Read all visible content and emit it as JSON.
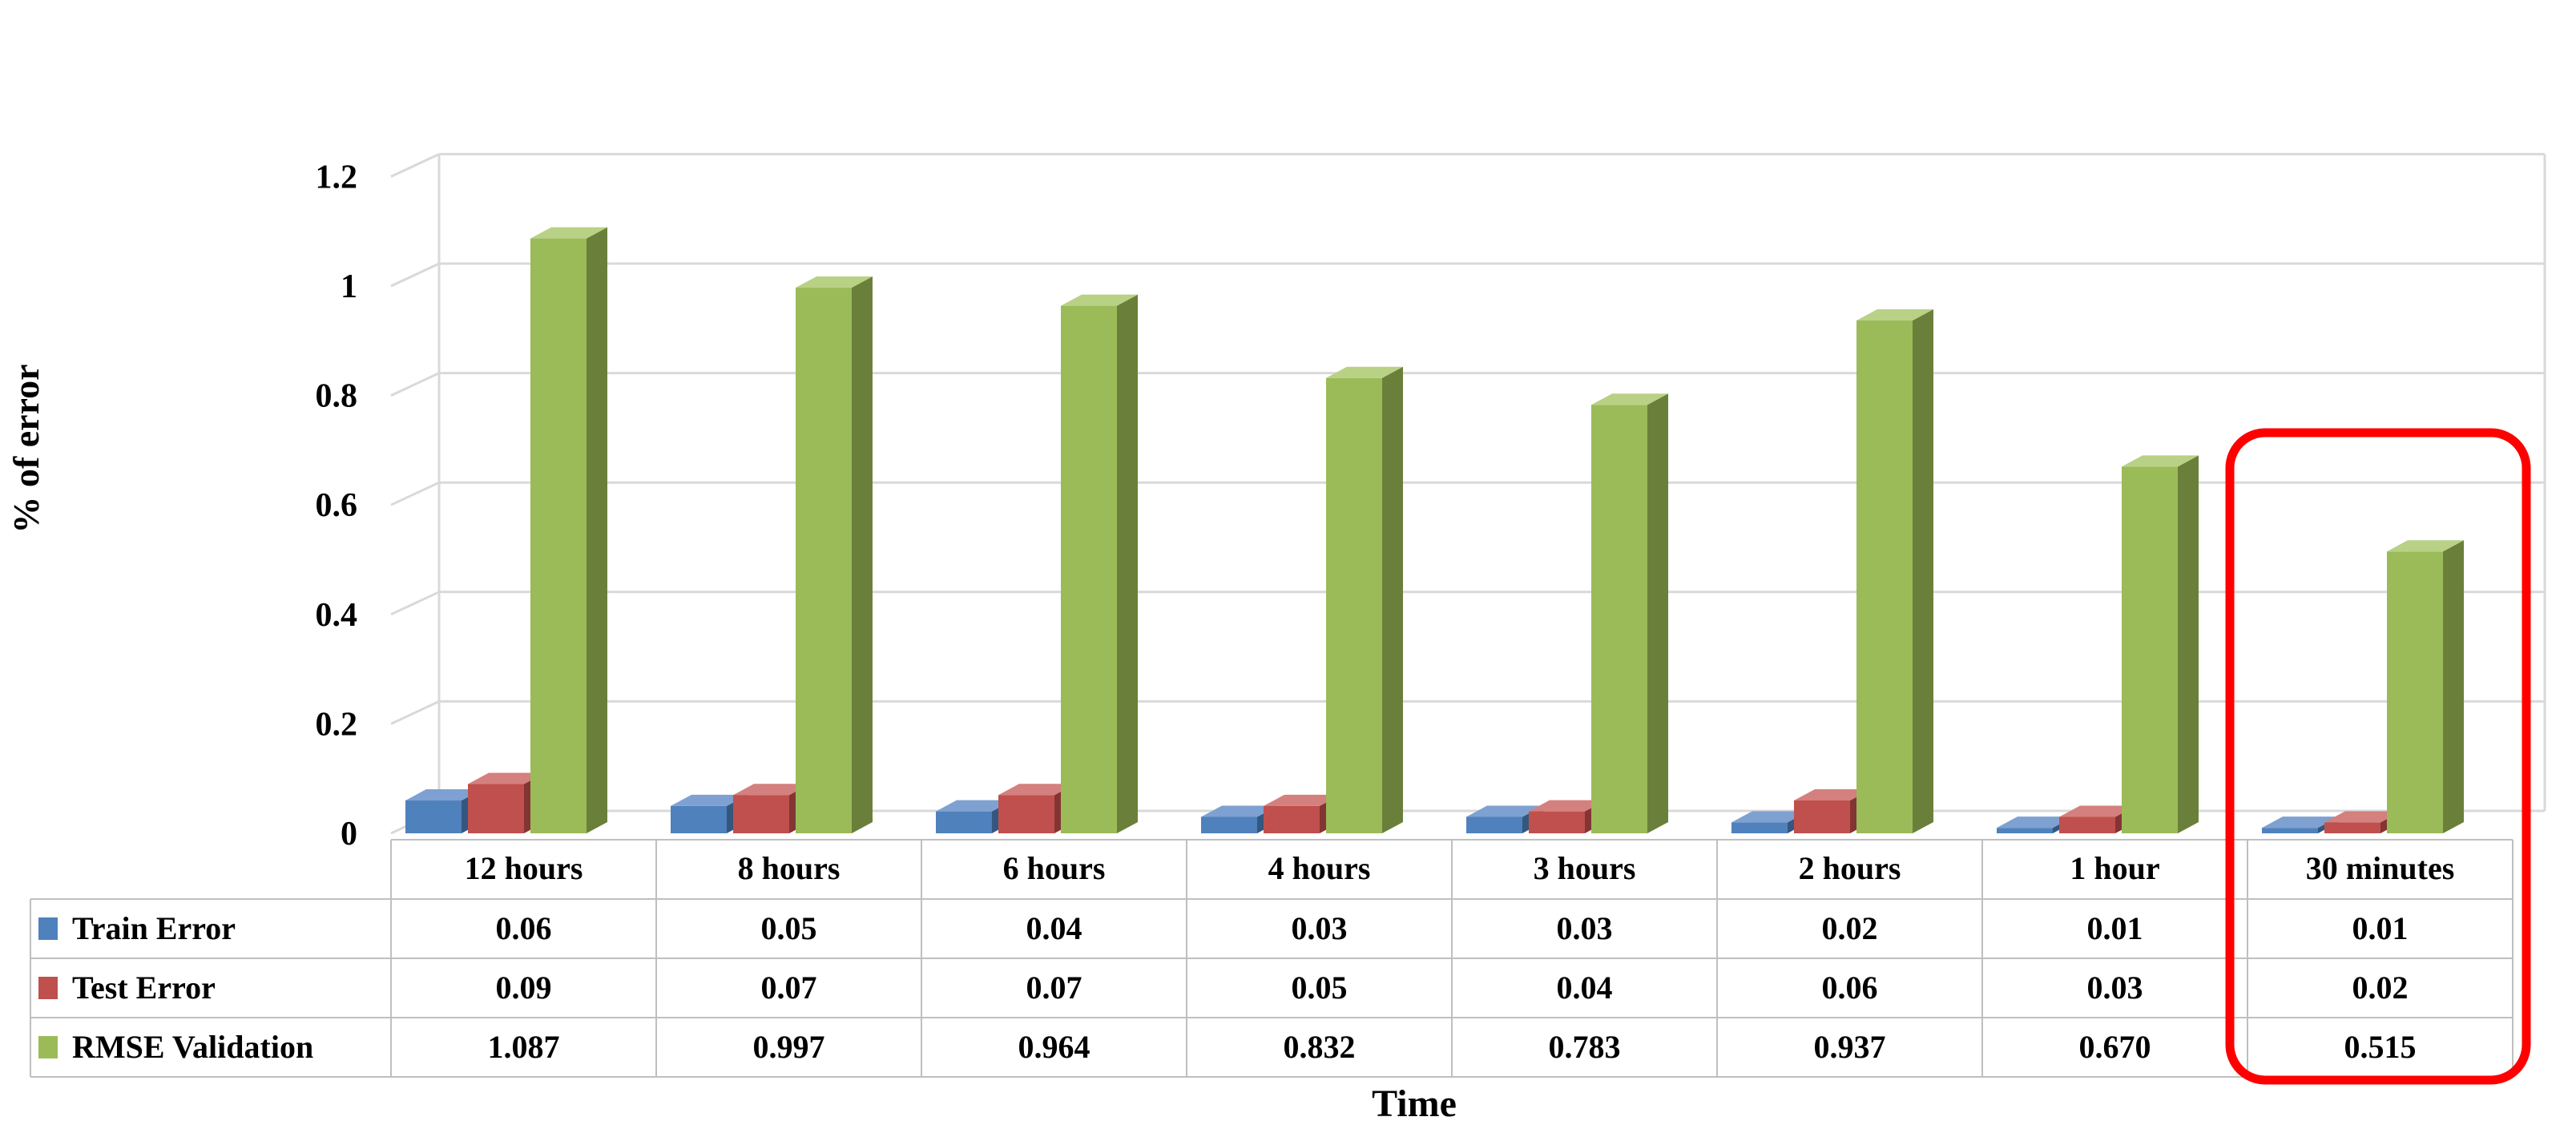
{
  "chart_data": {
    "type": "bar",
    "categories": [
      "12 hours",
      "8 hours",
      "6 hours",
      "4 hours",
      "3 hours",
      "2 hours",
      "1 hour",
      "30 minutes"
    ],
    "series": [
      {
        "name": "Train Error",
        "values": [
          0.06,
          0.05,
          0.04,
          0.03,
          0.03,
          0.02,
          0.01,
          0.01
        ],
        "labels": [
          "0.06",
          "0.05",
          "0.04",
          "0.03",
          "0.03",
          "0.02",
          "0.01",
          "0.01"
        ],
        "color": "#4F81BD",
        "side_color": "#34577F",
        "top_color": "#7EA1D1"
      },
      {
        "name": "Test Error",
        "values": [
          0.09,
          0.07,
          0.07,
          0.05,
          0.04,
          0.06,
          0.03,
          0.02
        ],
        "labels": [
          "0.09",
          "0.07",
          "0.07",
          "0.05",
          "0.04",
          "0.06",
          "0.03",
          "0.02"
        ],
        "color": "#C0504D",
        "side_color": "#833533",
        "top_color": "#D4807E"
      },
      {
        "name": "RMSE Validation",
        "values": [
          1.087,
          0.997,
          0.964,
          0.832,
          0.783,
          0.937,
          0.67,
          0.515
        ],
        "labels": [
          "1.087",
          "0.997",
          "0.964",
          "0.832",
          "0.783",
          "0.937",
          "0.670",
          "0.515"
        ],
        "color": "#9BBB59",
        "side_color": "#6A803A",
        "top_color": "#B9D185"
      }
    ],
    "ylim": [
      0,
      1.2
    ],
    "yticks": [
      "0",
      "0.2",
      "0.4",
      "0.6",
      "0.8",
      "1",
      "1.2"
    ],
    "ylabel": "% of error",
    "xlabel": "Time",
    "grid": true,
    "legend": "data-table",
    "highlighted_category": "30 minutes",
    "highlight_color": "#FF0000"
  }
}
